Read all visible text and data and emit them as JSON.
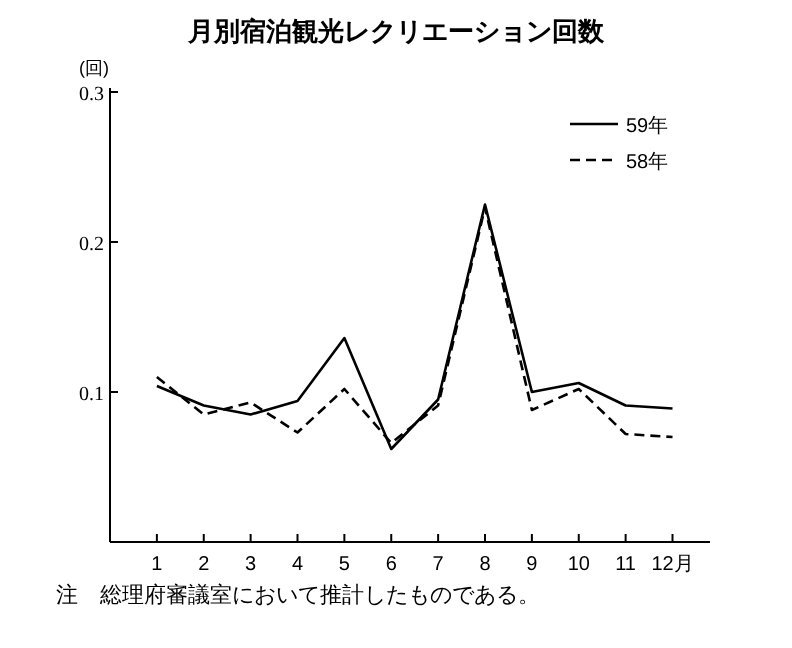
{
  "chart_data": {
    "type": "line",
    "title": "月別宿泊観光レクリエーション回数",
    "ylabel": "(回)",
    "categories": [
      "1",
      "2",
      "3",
      "4",
      "5",
      "6",
      "7",
      "8",
      "9",
      "10",
      "11",
      "12月"
    ],
    "series": [
      {
        "name": "59年",
        "color": "#000000",
        "line_style": "solid",
        "values": [
          0.104,
          0.091,
          0.085,
          0.094,
          0.136,
          0.062,
          0.095,
          0.225,
          0.1,
          0.106,
          0.091,
          0.089
        ]
      },
      {
        "name": "58年",
        "color": "#000000",
        "line_style": "dashed",
        "values": [
          0.11,
          0.085,
          0.093,
          0.073,
          0.102,
          0.066,
          0.091,
          0.223,
          0.088,
          0.102,
          0.072,
          0.07
        ]
      }
    ],
    "ylim": [
      0,
      0.3
    ],
    "yticks": [
      0.1,
      0.2,
      0.3
    ],
    "legend": "top right",
    "grid": false,
    "marker": "none",
    "annotations": [
      "注　総理府審議室において推計したものである。"
    ]
  }
}
